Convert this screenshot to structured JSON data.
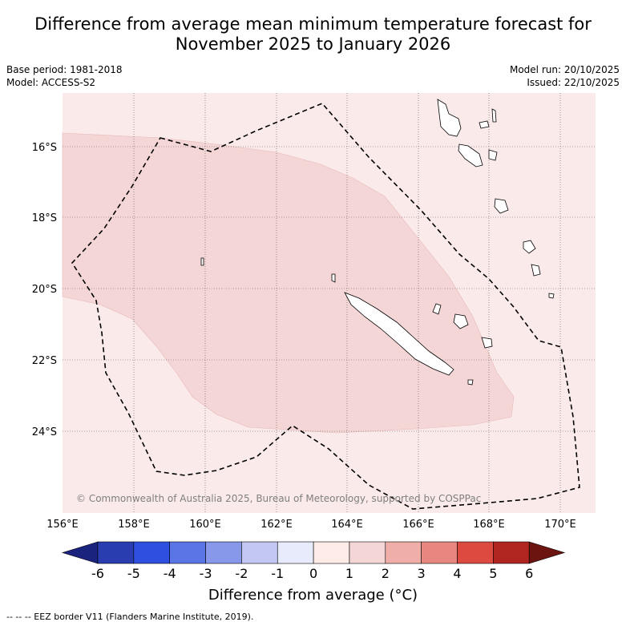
{
  "title_line1": "Difference from average mean minimum temperature forecast for",
  "title_line2": "November 2025 to January 2026",
  "base_period": "Base period: 1981-2018",
  "model": "Model: ACCESS-S2",
  "model_run": "Model run: 20/10/2025",
  "issued": "Issued: 22/10/2025",
  "copyright": "© Commonwealth of Australia 2025, Bureau of Meteorology, supported by COSPPac",
  "lon_labels": [
    "156°E",
    "158°E",
    "160°E",
    "162°E",
    "164°E",
    "166°E",
    "168°E",
    "170°E"
  ],
  "lat_labels": [
    "16°S",
    "18°S",
    "20°S",
    "22°S",
    "24°S"
  ],
  "colorbar": {
    "title": "Difference from average (°C)",
    "ticks": [
      "-6",
      "-5",
      "-4",
      "-3",
      "-2",
      "-1",
      "0",
      "1",
      "2",
      "3",
      "4",
      "5",
      "6"
    ],
    "colors": [
      "#1a237e",
      "#2a3db0",
      "#2f4fe0",
      "#5a75e6",
      "#8797ea",
      "#c2c8f3",
      "#e8ebfb",
      "#fdebe8",
      "#f5d6d6",
      "#f0aea9",
      "#e8877f",
      "#dc4a40",
      "#b0251f",
      "#6b1410"
    ]
  },
  "legend_text": "-- -- -- EEZ border V11 (Flanders Marine Institute, 2019).",
  "map_colors": {
    "background": "#fbeaea",
    "anomaly_1_2": "#f5d6d6"
  }
}
